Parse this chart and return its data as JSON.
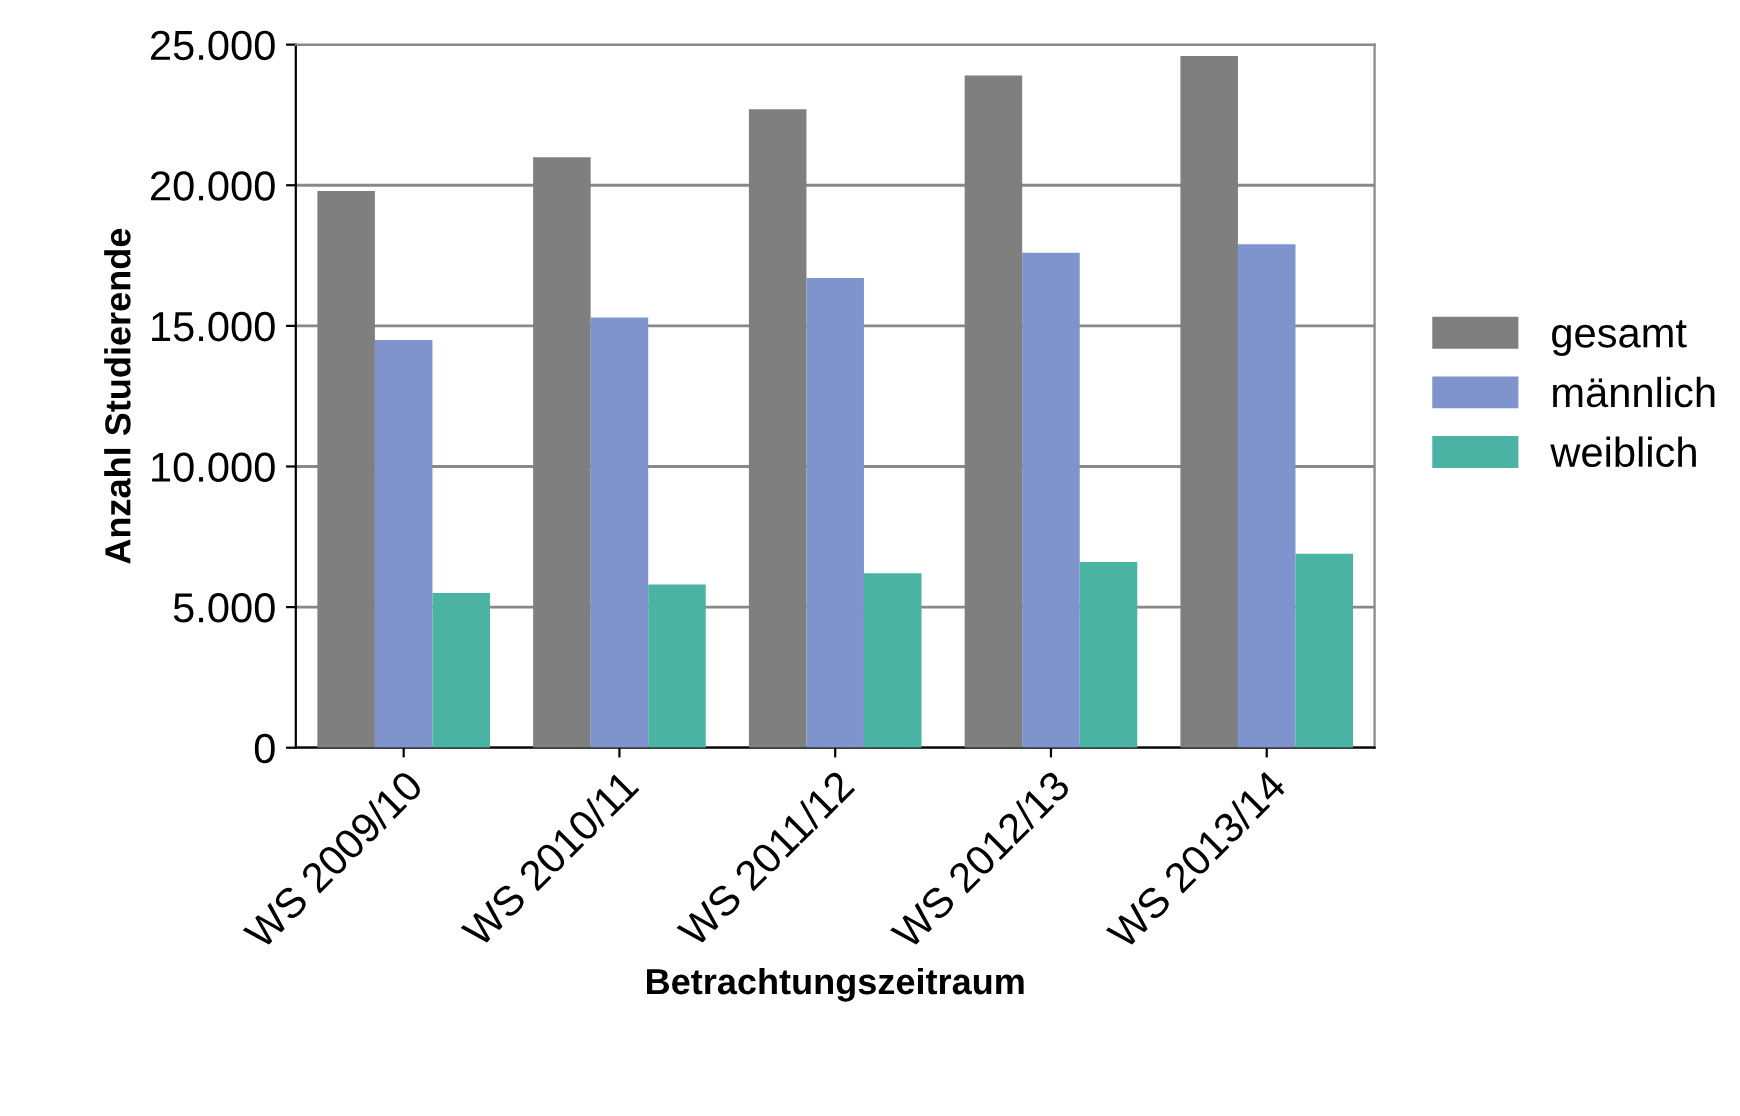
{
  "chart_data": {
    "type": "bar",
    "xlabel": "Betrachtungszeitraum",
    "ylabel": "Anzahl Studierende",
    "categories": [
      "WS 2009/10",
      "WS 2010/11",
      "WS 2011/12",
      "WS 2012/13",
      "WS 2013/14"
    ],
    "series": [
      {
        "name": "gesamt",
        "color": "#7f7f7f",
        "values": [
          19800,
          21000,
          22700,
          23900,
          24600
        ]
      },
      {
        "name": "männlich",
        "color": "#7f93cc",
        "values": [
          14500,
          15300,
          16700,
          17600,
          17900
        ]
      },
      {
        "name": "weiblich",
        "color": "#4bb3a3",
        "values": [
          5500,
          5800,
          6200,
          6600,
          6900
        ]
      }
    ],
    "ylim": [
      0,
      25000
    ],
    "yticks": [
      {
        "value": 0,
        "label": "0"
      },
      {
        "value": 5000,
        "label": "5.000"
      },
      {
        "value": 10000,
        "label": "10.000"
      },
      {
        "value": 15000,
        "label": "15.000"
      },
      {
        "value": 20000,
        "label": "20.000"
      },
      {
        "value": 25000,
        "label": "25.000"
      }
    ],
    "grid": "y",
    "legend": "right"
  }
}
